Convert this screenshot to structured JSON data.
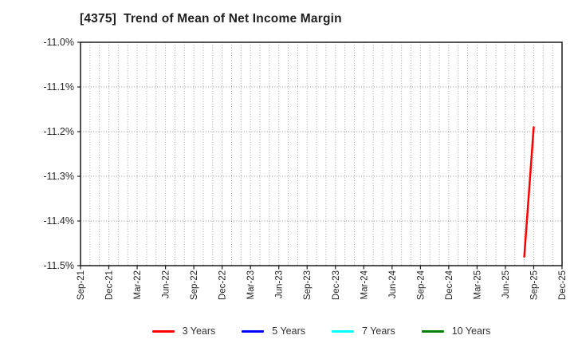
{
  "window": {
    "background": "#ffffff"
  },
  "chart_data": {
    "type": "line",
    "title": "[4375]  Trend of Mean of Net Income Margin",
    "title_color": "#1f1f1f",
    "x_axis": {
      "unit": "month",
      "start_label": "Sep-21",
      "end_label": "Dec-25",
      "total_month_span": 51,
      "tick_every_months": 3,
      "tick_labels": [
        "Sep-21",
        "Dec-21",
        "Mar-22",
        "Jun-22",
        "Sep-22",
        "Dec-22",
        "Mar-23",
        "Jun-23",
        "Sep-23",
        "Dec-23",
        "Mar-24",
        "Jun-24",
        "Sep-24",
        "Dec-24",
        "Mar-25",
        "Jun-25",
        "Sep-25",
        "Dec-25"
      ]
    },
    "y_axis": {
      "min": -11.5,
      "max": -11.0,
      "tick_values": [
        -11.0,
        -11.1,
        -11.2,
        -11.3,
        -11.4,
        -11.5
      ],
      "tick_labels": [
        "-11.0%",
        "-11.1%",
        "-11.2%",
        "-11.3%",
        "-11.4%",
        "-11.5%"
      ]
    },
    "grid": {
      "vertical": "monthly-dotted",
      "horizontal": "per-tick-dotted",
      "grid_color": "#a0a0a0",
      "border_color": "#1a1a1a",
      "label_color": "#262626"
    },
    "series": [
      {
        "name": "3 Years",
        "color": "#ff0000",
        "points": [
          {
            "month_label": "Aug-25",
            "month_index": 47,
            "value": -11.48
          },
          {
            "month_label": "Sep-25",
            "month_index": 48,
            "value": -11.19
          }
        ]
      },
      {
        "name": "5 Years",
        "color": "#0000ff",
        "points": []
      },
      {
        "name": "7 Years",
        "color": "#00ffff",
        "points": []
      },
      {
        "name": "10 Years",
        "color": "#008000",
        "points": []
      }
    ],
    "legend": {
      "position": "bottom-center",
      "entries": [
        "3 Years",
        "5 Years",
        "7 Years",
        "10 Years"
      ]
    }
  }
}
